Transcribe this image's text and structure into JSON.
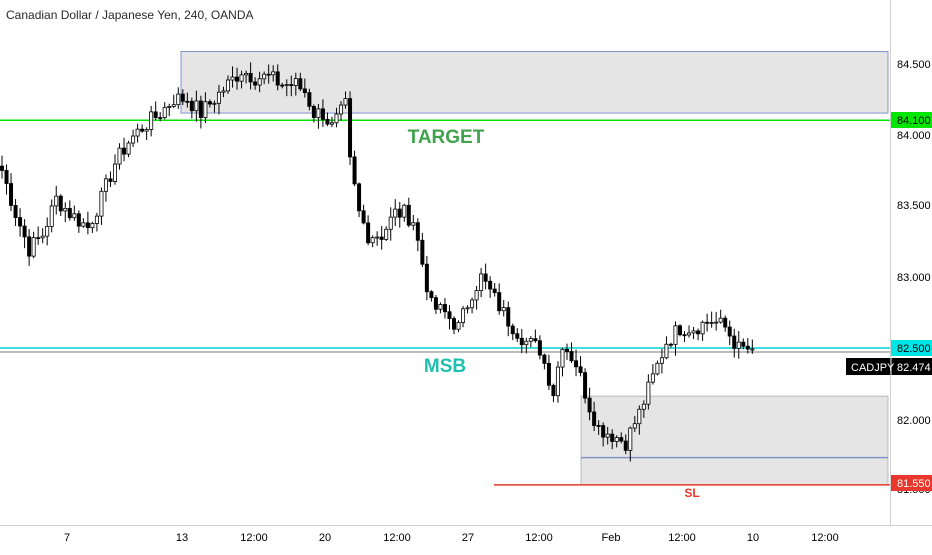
{
  "header": {
    "title": "Canadian Dollar / Japanese Yen, 240, OANDA"
  },
  "colors": {
    "candle_up": "#ffffff",
    "candle_down": "#000000",
    "wick": "#000000",
    "target_line": "#00e600",
    "msb_line": "#00d4d4",
    "sl_line": "#e8382d",
    "zone_fill": "#e5e5e5",
    "zone_border": "#7f93c9",
    "target_text": "#3fa34d",
    "msb_text": "#1fbfb0",
    "sl_text": "#e8382d",
    "axis_text": "#4a4a4a",
    "price_tag_bg": "#000000"
  },
  "chart_data": {
    "type": "candlestick",
    "symbol": "CADJPY",
    "timeframe": "240",
    "source": "OANDA",
    "y_ticks": [
      "84.500",
      "84.000",
      "83.500",
      "83.000",
      "82.000",
      "81.500"
    ],
    "x_ticks": [
      "7",
      "13",
      "12:00",
      "20",
      "12:00",
      "27",
      "12:00",
      "Feb",
      "12:00",
      "10",
      "12:00"
    ],
    "ylim": [
      81.3,
      84.9
    ],
    "anchors": [
      [
        0,
        83.75
      ],
      [
        3,
        83.45
      ],
      [
        6,
        83.2
      ],
      [
        9,
        83.3
      ],
      [
        12,
        83.55
      ],
      [
        15,
        83.45
      ],
      [
        19,
        83.35
      ],
      [
        22,
        83.55
      ],
      [
        25,
        83.8
      ],
      [
        28,
        83.95
      ],
      [
        31,
        84.05
      ],
      [
        35,
        84.15
      ],
      [
        38,
        84.25
      ],
      [
        41,
        84.25
      ],
      [
        44,
        84.15
      ],
      [
        47,
        84.25
      ],
      [
        50,
        84.35
      ],
      [
        53,
        84.45
      ],
      [
        56,
        84.4
      ],
      [
        59,
        84.4
      ],
      [
        62,
        84.35
      ],
      [
        65,
        84.35
      ],
      [
        67,
        84.3
      ],
      [
        69,
        84.15
      ],
      [
        71,
        84.15
      ],
      [
        73,
        84.05
      ],
      [
        75,
        84.15
      ],
      [
        76,
        84.2
      ],
      [
        77,
        83.8
      ],
      [
        79,
        83.45
      ],
      [
        81,
        83.3
      ],
      [
        84,
        83.3
      ],
      [
        87,
        83.45
      ],
      [
        89,
        83.45
      ],
      [
        91,
        83.4
      ],
      [
        93,
        83.1
      ],
      [
        95,
        82.8
      ],
      [
        98,
        82.75
      ],
      [
        101,
        82.65
      ],
      [
        104,
        82.9
      ],
      [
        106,
        83.0
      ],
      [
        109,
        82.85
      ],
      [
        112,
        82.7
      ],
      [
        116,
        82.55
      ],
      [
        119,
        82.5
      ],
      [
        122,
        82.2
      ],
      [
        124,
        82.55
      ],
      [
        127,
        82.4
      ],
      [
        130,
        82.1
      ],
      [
        132,
        81.95
      ],
      [
        135,
        81.9
      ],
      [
        138,
        81.85
      ],
      [
        141,
        82.05
      ],
      [
        144,
        82.3
      ],
      [
        147,
        82.55
      ],
      [
        150,
        82.65
      ],
      [
        153,
        82.65
      ],
      [
        157,
        82.7
      ],
      [
        160,
        82.65
      ],
      [
        163,
        82.5
      ],
      [
        166,
        82.5
      ]
    ],
    "levels": [
      {
        "name": "TARGET",
        "value": 84.1,
        "tag": "84.100"
      },
      {
        "name": "MSB",
        "value": 82.5,
        "tag": "82.500"
      },
      {
        "name": "SL",
        "value": 81.55,
        "tag": "81.550"
      }
    ],
    "zones": [
      {
        "name": "supply-zone",
        "from": 84.15,
        "to": 84.58
      },
      {
        "name": "demand-zone",
        "from": 81.55,
        "to": 82.17,
        "inner_line": 81.74
      }
    ],
    "current_price": {
      "symbol": "CADJPY",
      "value": "82.474"
    },
    "annotations": [
      "TARGET",
      "MSB",
      "SL"
    ]
  }
}
